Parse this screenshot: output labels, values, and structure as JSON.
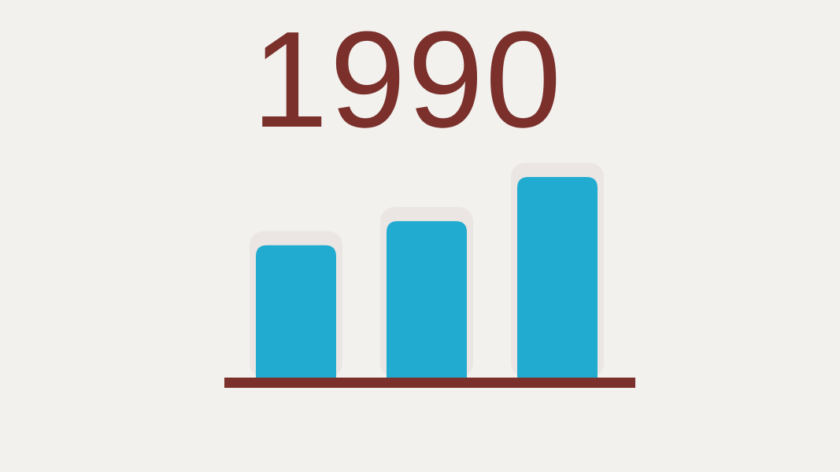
{
  "title": "1990",
  "colors": {
    "background": "#f2f1ee",
    "bar": "#22abd0",
    "accent": "#7b302b"
  },
  "chart_data": {
    "type": "bar",
    "title": "1990",
    "categories": [
      "",
      "",
      ""
    ],
    "values": [
      66,
      78,
      100
    ],
    "ylim": [
      0,
      100
    ],
    "xlabel": "",
    "ylabel": "",
    "grid": false,
    "legend": "none"
  }
}
